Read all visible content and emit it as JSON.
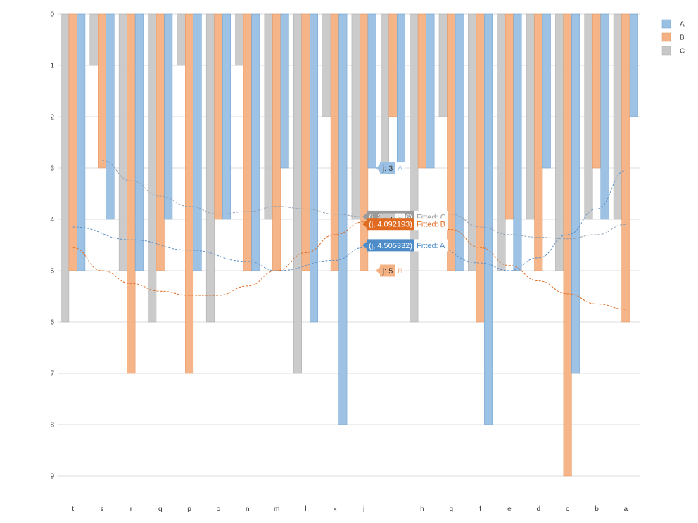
{
  "chart_data": {
    "type": "bar",
    "orientation": "vertical",
    "y_axis_reversed": true,
    "categories": [
      "t",
      "s",
      "r",
      "q",
      "p",
      "o",
      "n",
      "m",
      "l",
      "k",
      "j",
      "i",
      "h",
      "g",
      "f",
      "e",
      "d",
      "c",
      "b",
      "a"
    ],
    "series": [
      {
        "name": "A",
        "color": "#99bfe3",
        "stroke": "#6a9fd0",
        "values": [
          5,
          4,
          5,
          4,
          5,
          4,
          5,
          3,
          6,
          8,
          3,
          2.9,
          3,
          5,
          8,
          5,
          3,
          7,
          4,
          2
        ]
      },
      {
        "name": "B",
        "color": "#f4b183",
        "stroke": "#e4925a",
        "values": [
          5,
          3,
          7,
          5,
          7,
          4,
          5,
          5,
          5,
          5,
          5,
          2,
          3,
          5,
          6,
          4,
          5,
          9,
          3,
          6
        ]
      },
      {
        "name": "C",
        "color": "#c8c8c8",
        "stroke": "#aaaaaa",
        "values": [
          6,
          1,
          5,
          6,
          1,
          6,
          1,
          4,
          7,
          2,
          4,
          3,
          6,
          2,
          5,
          5,
          4,
          5,
          4,
          4
        ]
      }
    ],
    "trendlines": [
      {
        "name": "A",
        "color": "#5b8fc7",
        "x": [
          0,
          2,
          4,
          6,
          7,
          9,
          10,
          12,
          14,
          15,
          16,
          17,
          18,
          19
        ],
        "y": [
          4.15,
          4.4,
          4.6,
          4.82,
          5.0,
          4.8,
          4.55,
          4.4,
          4.85,
          5.0,
          4.75,
          4.3,
          3.8,
          3.05
        ]
      },
      {
        "name": "B",
        "color": "#e06a1f",
        "x": [
          0,
          1,
          2,
          3,
          4,
          5,
          6,
          7,
          8,
          9,
          10,
          11,
          12,
          13,
          14,
          15,
          16,
          17,
          18,
          19
        ],
        "y": [
          4.55,
          5.0,
          5.25,
          5.4,
          5.48,
          5.48,
          5.3,
          5.0,
          4.65,
          4.3,
          4.05,
          3.9,
          3.95,
          4.2,
          4.55,
          4.9,
          5.2,
          5.45,
          5.65,
          5.75
        ]
      },
      {
        "name": "C",
        "color": "#8e9eb0",
        "x": [
          1,
          2,
          3,
          4,
          5,
          6,
          7,
          8,
          9,
          10,
          11,
          12,
          13,
          14,
          15,
          16,
          17,
          18,
          19
        ],
        "y": [
          2.85,
          3.25,
          3.55,
          3.75,
          3.9,
          3.85,
          3.75,
          3.8,
          3.9,
          3.95,
          3.95,
          3.85,
          3.9,
          4.15,
          4.3,
          4.35,
          4.38,
          4.3,
          4.1
        ]
      }
    ],
    "y_ticks": [
      0,
      1,
      2,
      3,
      4,
      5,
      6,
      7,
      8,
      9
    ],
    "ylim": [
      0,
      9.5
    ],
    "grid": true,
    "legend": {
      "position": "top-right",
      "entries": [
        "A",
        "B",
        "C"
      ]
    },
    "annotations": [
      {
        "category": "j",
        "label": "j: 3",
        "series": "A",
        "value": 3,
        "bg": "#99bfe3",
        "text_color": "#3b3b3b",
        "side_text": "A",
        "side_color": "#99bfe3"
      },
      {
        "category": "j",
        "label": "(j, 3.950636)",
        "series": "C",
        "value": 3.950636,
        "bg": "#9a9a9a",
        "text_color": "#ffffff",
        "side_text": "Fitted: C",
        "side_color": "#9a9a9a",
        "wide": true
      },
      {
        "category": "j",
        "label": "j: 4",
        "series": "C",
        "value": 4,
        "bg": "#c8c8c8",
        "text_color": "#3b3b3b",
        "side_text": "C",
        "side_color": "#c8c8c8"
      },
      {
        "category": "j",
        "label": "(j, 4.092193)",
        "series": "B",
        "value": 4.092193,
        "bg": "#e06a1f",
        "text_color": "#ffffff",
        "side_text": "Fitted: B",
        "side_color": "#e06a1f",
        "wide": true
      },
      {
        "category": "j",
        "label": "(j, 4.505332)",
        "series": "A",
        "value": 4.505332,
        "bg": "#4d8cc8",
        "text_color": "#ffffff",
        "side_text": "Fitted: A",
        "side_color": "#4d8cc8",
        "wide": true
      },
      {
        "category": "j",
        "label": "j: 5",
        "series": "B",
        "value": 5,
        "bg": "#f4b183",
        "text_color": "#3b3b3b",
        "side_text": "B",
        "side_color": "#f4b183"
      }
    ]
  }
}
